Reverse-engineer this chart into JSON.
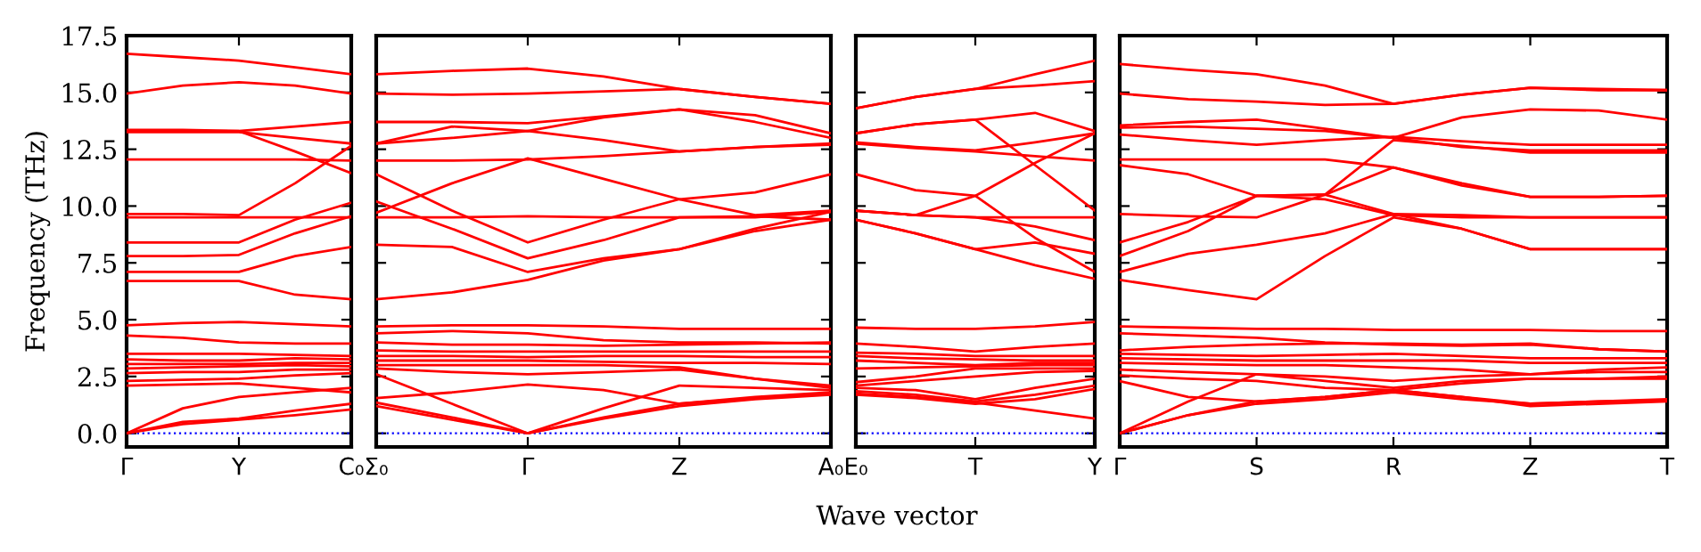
{
  "chart_data": [
    {
      "type": "line",
      "ylabel": "Frequency (THz)",
      "ylim": [
        -0.6,
        17.5
      ],
      "yticks": [
        {
          "value": 0,
          "label": "0.0"
        },
        {
          "value": 2.5,
          "label": "2.5"
        },
        {
          "value": 5,
          "label": "5.0"
        },
        {
          "value": 7.5,
          "label": "7.5"
        },
        {
          "value": 10,
          "label": "10.0"
        },
        {
          "value": 12.5,
          "label": "12.5"
        },
        {
          "value": 15,
          "label": "15.0"
        },
        {
          "value": 17.5,
          "label": "17.5"
        }
      ],
      "categories": [
        "Γ",
        null,
        "Y",
        null,
        "C₀"
      ],
      "marker": "none",
      "line_style": "solid",
      "ref_lines": [
        {
          "axis": "y",
          "value": 0,
          "label": null,
          "color": "#0000ff",
          "line_style": "dotted"
        }
      ],
      "series": [
        {
          "color": "#ff0000",
          "values": [
            16.7,
            16.55,
            16.4,
            16.1,
            15.8
          ]
        },
        {
          "color": "#ff0000",
          "values": [
            14.95,
            15.3,
            15.45,
            15.3,
            14.95
          ]
        },
        {
          "color": "#ff0000",
          "values": [
            13.35,
            13.35,
            13.3,
            13.5,
            13.7
          ]
        },
        {
          "color": "#ff0000",
          "values": [
            13.3,
            13.3,
            13.3,
            12.4,
            11.45
          ]
        },
        {
          "color": "#ff0000",
          "values": [
            13.25,
            13.25,
            13.25,
            13.0,
            12.75
          ]
        },
        {
          "color": "#ff0000",
          "values": [
            12.05,
            12.05,
            12.05,
            12.05,
            12.0
          ]
        },
        {
          "color": "#ff0000",
          "values": [
            9.65,
            9.65,
            9.6,
            11.0,
            12.65
          ]
        },
        {
          "color": "#ff0000",
          "values": [
            9.5,
            9.5,
            9.5,
            9.5,
            9.5
          ]
        },
        {
          "color": "#ff0000",
          "values": [
            8.4,
            8.4,
            8.4,
            9.4,
            10.15
          ]
        },
        {
          "color": "#ff0000",
          "values": [
            7.8,
            7.8,
            7.85,
            8.8,
            9.55
          ]
        },
        {
          "color": "#ff0000",
          "values": [
            7.1,
            7.1,
            7.1,
            7.8,
            8.2
          ]
        },
        {
          "color": "#ff0000",
          "values": [
            6.7,
            6.7,
            6.7,
            6.1,
            5.9
          ]
        },
        {
          "color": "#ff0000",
          "values": [
            4.75,
            4.85,
            4.9,
            4.8,
            4.7
          ]
        },
        {
          "color": "#ff0000",
          "values": [
            4.3,
            4.2,
            4.0,
            3.95,
            3.95
          ]
        },
        {
          "color": "#ff0000",
          "values": [
            3.5,
            3.5,
            3.5,
            3.45,
            3.4
          ]
        },
        {
          "color": "#ff0000",
          "values": [
            3.25,
            3.2,
            3.2,
            3.3,
            3.25
          ]
        },
        {
          "color": "#ff0000",
          "values": [
            3.05,
            3.05,
            3.05,
            3.1,
            3.1
          ]
        },
        {
          "color": "#ff0000",
          "values": [
            2.85,
            2.9,
            2.95,
            3.0,
            2.95
          ]
        },
        {
          "color": "#ff0000",
          "values": [
            2.65,
            2.7,
            2.7,
            2.8,
            2.8
          ]
        },
        {
          "color": "#ff0000",
          "values": [
            2.3,
            2.35,
            2.4,
            2.55,
            2.65
          ]
        },
        {
          "color": "#ff0000",
          "values": [
            2.1,
            2.15,
            2.2,
            2.0,
            1.8
          ]
        },
        {
          "color": "#ff0000",
          "values": [
            0,
            1.1,
            1.6,
            1.8,
            2.0
          ]
        },
        {
          "color": "#ff0000",
          "values": [
            0,
            0.4,
            0.6,
            0.8,
            1.05
          ]
        },
        {
          "color": "#ff0000",
          "values": [
            0,
            0.5,
            0.65,
            1.0,
            1.3
          ]
        }
      ]
    },
    {
      "type": "line",
      "ylim": [
        -0.6,
        17.5
      ],
      "yticks": [
        0,
        2.5,
        5,
        7.5,
        10,
        12.5,
        15,
        17.5
      ],
      "tick_labels": "x",
      "categories": [
        "Σ₀",
        null,
        "Γ",
        null,
        "Z",
        null,
        "A₀"
      ],
      "marker": "none",
      "line_style": "solid",
      "ref_lines": [
        {
          "axis": "y",
          "value": 0,
          "label": null,
          "color": "#0000ff",
          "line_style": "dotted"
        }
      ],
      "series": [
        {
          "color": "#ff0000",
          "values": [
            15.8,
            15.95,
            16.05,
            15.7,
            15.15,
            14.8,
            14.5
          ]
        },
        {
          "color": "#ff0000",
          "values": [
            14.95,
            14.9,
            14.95,
            15.05,
            15.15,
            14.8,
            14.5
          ]
        },
        {
          "color": "#ff0000",
          "values": [
            13.7,
            13.7,
            13.65,
            13.95,
            14.25,
            13.7,
            13.0
          ]
        },
        {
          "color": "#ff0000",
          "values": [
            12.75,
            13.5,
            13.3,
            13.9,
            14.25,
            14.0,
            13.2
          ]
        },
        {
          "color": "#ff0000",
          "values": [
            12.75,
            13.0,
            13.3,
            12.9,
            12.4,
            12.6,
            12.75
          ]
        },
        {
          "color": "#ff0000",
          "values": [
            12.0,
            12.0,
            12.05,
            12.2,
            12.4,
            12.6,
            12.7
          ]
        },
        {
          "color": "#ff0000",
          "values": [
            11.4,
            9.8,
            8.4,
            9.4,
            10.3,
            9.6,
            9.8
          ]
        },
        {
          "color": "#ff0000",
          "values": [
            9.7,
            11.0,
            12.1,
            11.2,
            10.3,
            10.6,
            11.4
          ]
        },
        {
          "color": "#ff0000",
          "values": [
            10.2,
            9.0,
            7.7,
            8.5,
            9.5,
            9.5,
            9.75
          ]
        },
        {
          "color": "#ff0000",
          "values": [
            9.5,
            9.5,
            9.55,
            9.5,
            9.5,
            9.55,
            9.4
          ]
        },
        {
          "color": "#ff0000",
          "values": [
            8.3,
            8.2,
            7.1,
            7.7,
            8.1,
            9.0,
            9.75
          ]
        },
        {
          "color": "#ff0000",
          "values": [
            5.9,
            6.2,
            6.75,
            7.6,
            8.1,
            8.9,
            9.4
          ]
        },
        {
          "color": "#ff0000",
          "values": [
            4.7,
            4.75,
            4.75,
            4.7,
            4.6,
            4.6,
            4.6
          ]
        },
        {
          "color": "#ff0000",
          "values": [
            4.4,
            4.5,
            4.4,
            4.1,
            4.0,
            4.0,
            3.95
          ]
        },
        {
          "color": "#ff0000",
          "values": [
            4.0,
            3.9,
            3.9,
            3.85,
            3.9,
            3.95,
            4.0
          ]
        },
        {
          "color": "#ff0000",
          "values": [
            3.65,
            3.6,
            3.6,
            3.6,
            3.6,
            3.6,
            3.6
          ]
        },
        {
          "color": "#ff0000",
          "values": [
            3.4,
            3.4,
            3.35,
            3.4,
            3.4,
            3.35,
            3.35
          ]
        },
        {
          "color": "#ff0000",
          "values": [
            3.2,
            3.2,
            3.2,
            3.15,
            3.1,
            3.1,
            3.05
          ]
        },
        {
          "color": "#ff0000",
          "values": [
            3.0,
            3.0,
            3.0,
            3.0,
            2.9,
            2.4,
            2.1
          ]
        },
        {
          "color": "#ff0000",
          "values": [
            2.85,
            2.7,
            2.6,
            2.7,
            2.8,
            2.4,
            2.0
          ]
        },
        {
          "color": "#ff0000",
          "values": [
            2.6,
            1.3,
            0,
            1.1,
            2.1,
            2.0,
            1.9
          ]
        },
        {
          "color": "#ff0000",
          "values": [
            1.55,
            1.8,
            2.15,
            1.9,
            1.3,
            1.6,
            1.8
          ]
        },
        {
          "color": "#ff0000",
          "values": [
            1.35,
            0.7,
            0,
            0.7,
            1.3,
            1.55,
            1.75
          ]
        },
        {
          "color": "#ff0000",
          "values": [
            1.2,
            0.6,
            0,
            0.65,
            1.2,
            1.5,
            1.7
          ]
        }
      ]
    },
    {
      "type": "line",
      "xlabel": "Wave vector",
      "ylim": [
        -0.6,
        17.5
      ],
      "yticks": [
        0,
        2.5,
        5,
        7.5,
        10,
        12.5,
        15,
        17.5
      ],
      "tick_labels": "x",
      "categories": [
        "E₀",
        null,
        "T",
        null,
        "Y"
      ],
      "marker": "none",
      "line_style": "solid",
      "ref_lines": [
        {
          "axis": "y",
          "value": 0,
          "label": null,
          "color": "#0000ff",
          "line_style": "dotted"
        }
      ],
      "series": [
        {
          "color": "#ff0000",
          "values": [
            14.3,
            14.8,
            15.15,
            15.8,
            16.4
          ]
        },
        {
          "color": "#ff0000",
          "values": [
            14.3,
            14.8,
            15.15,
            15.3,
            15.5
          ]
        },
        {
          "color": "#ff0000",
          "values": [
            13.2,
            13.6,
            13.8,
            14.1,
            13.3
          ]
        },
        {
          "color": "#ff0000",
          "values": [
            13.2,
            13.6,
            13.8,
            11.8,
            9.8
          ]
        },
        {
          "color": "#ff0000",
          "values": [
            12.8,
            12.6,
            12.45,
            12.8,
            13.2
          ]
        },
        {
          "color": "#ff0000",
          "values": [
            12.75,
            12.55,
            12.4,
            12.2,
            12.0
          ]
        },
        {
          "color": "#ff0000",
          "values": [
            11.4,
            10.7,
            10.45,
            11.9,
            13.2
          ]
        },
        {
          "color": "#ff0000",
          "values": [
            9.8,
            9.6,
            9.5,
            9.5,
            9.5
          ]
        },
        {
          "color": "#ff0000",
          "values": [
            9.8,
            9.6,
            10.45,
            8.6,
            7.1
          ]
        },
        {
          "color": "#ff0000",
          "values": [
            9.4,
            8.8,
            8.1,
            8.4,
            7.9
          ]
        },
        {
          "color": "#ff0000",
          "values": [
            9.4,
            8.8,
            8.1,
            7.4,
            6.8
          ]
        },
        {
          "color": "#ff0000",
          "values": [
            9.8,
            9.6,
            9.5,
            9.1,
            8.5
          ]
        },
        {
          "color": "#ff0000",
          "values": [
            4.65,
            4.6,
            4.6,
            4.7,
            4.9
          ]
        },
        {
          "color": "#ff0000",
          "values": [
            3.95,
            3.8,
            3.6,
            3.8,
            3.95
          ]
        },
        {
          "color": "#ff0000",
          "values": [
            3.55,
            3.5,
            3.4,
            3.4,
            3.4
          ]
        },
        {
          "color": "#ff0000",
          "values": [
            3.4,
            3.3,
            3.25,
            3.2,
            3.2
          ]
        },
        {
          "color": "#ff0000",
          "values": [
            3.2,
            3.1,
            3.0,
            3.1,
            3.1
          ]
        },
        {
          "color": "#ff0000",
          "values": [
            2.85,
            2.9,
            2.95,
            3.0,
            3.0
          ]
        },
        {
          "color": "#ff0000",
          "values": [
            2.25,
            2.5,
            2.85,
            2.85,
            2.85
          ]
        },
        {
          "color": "#ff0000",
          "values": [
            2.1,
            2.3,
            2.5,
            2.7,
            2.75
          ]
        },
        {
          "color": "#ff0000",
          "values": [
            2.0,
            1.9,
            1.5,
            2.0,
            2.4
          ]
        },
        {
          "color": "#ff0000",
          "values": [
            1.85,
            1.7,
            1.4,
            1.7,
            2.1
          ]
        },
        {
          "color": "#ff0000",
          "values": [
            1.75,
            1.6,
            1.35,
            1.0,
            0.65
          ]
        },
        {
          "color": "#ff0000",
          "values": [
            1.7,
            1.55,
            1.3,
            1.5,
            1.95
          ]
        }
      ]
    },
    {
      "type": "line",
      "ylim": [
        -0.6,
        17.5
      ],
      "yticks": [
        0,
        2.5,
        5,
        7.5,
        10,
        12.5,
        15,
        17.5
      ],
      "tick_labels": "x",
      "categories": [
        "Γ",
        null,
        "S",
        null,
        "R",
        null,
        "Z",
        null,
        "T"
      ],
      "marker": "none",
      "line_style": "solid",
      "ref_lines": [
        {
          "axis": "y",
          "value": 0,
          "label": null,
          "color": "#0000ff",
          "line_style": "dotted"
        }
      ],
      "series": [
        {
          "color": "#ff0000",
          "values": [
            16.25,
            16.0,
            15.8,
            15.3,
            14.5,
            14.9,
            15.2,
            15.1,
            15.1
          ]
        },
        {
          "color": "#ff0000",
          "values": [
            14.95,
            14.7,
            14.6,
            14.45,
            14.5,
            14.9,
            15.2,
            15.15,
            15.1
          ]
        },
        {
          "color": "#ff0000",
          "values": [
            13.55,
            13.7,
            13.8,
            13.4,
            13.0,
            12.6,
            12.45,
            12.45,
            12.45
          ]
        },
        {
          "color": "#ff0000",
          "values": [
            13.45,
            13.5,
            13.4,
            13.3,
            13.0,
            13.9,
            14.25,
            14.2,
            13.8
          ]
        },
        {
          "color": "#ff0000",
          "values": [
            13.15,
            12.9,
            12.7,
            12.9,
            13.05,
            12.85,
            12.7,
            12.7,
            12.7
          ]
        },
        {
          "color": "#ff0000",
          "values": [
            12.05,
            12.05,
            12.05,
            12.05,
            11.7,
            10.9,
            10.4,
            10.4,
            10.45
          ]
        },
        {
          "color": "#ff0000",
          "values": [
            11.8,
            11.4,
            10.45,
            10.5,
            9.65,
            9.0,
            8.1,
            8.1,
            8.1
          ]
        },
        {
          "color": "#ff0000",
          "values": [
            9.65,
            9.55,
            9.5,
            10.5,
            12.9,
            12.65,
            12.35,
            12.35,
            12.35
          ]
        },
        {
          "color": "#ff0000",
          "values": [
            8.4,
            9.3,
            10.45,
            10.5,
            11.7,
            11.0,
            10.4,
            10.4,
            10.45
          ]
        },
        {
          "color": "#ff0000",
          "values": [
            7.8,
            8.9,
            10.45,
            10.3,
            9.6,
            9.5,
            9.5,
            9.5,
            9.5
          ]
        },
        {
          "color": "#ff0000",
          "values": [
            7.1,
            7.9,
            8.3,
            8.8,
            9.65,
            9.6,
            9.5,
            9.5,
            9.5
          ]
        },
        {
          "color": "#ff0000",
          "values": [
            6.75,
            6.3,
            5.9,
            7.8,
            9.5,
            9.0,
            8.1,
            8.1,
            8.1
          ]
        },
        {
          "color": "#ff0000",
          "values": [
            4.7,
            4.65,
            4.6,
            4.6,
            4.55,
            4.55,
            4.55,
            4.5,
            4.5
          ]
        },
        {
          "color": "#ff0000",
          "values": [
            4.4,
            4.3,
            4.2,
            4.0,
            3.9,
            3.85,
            3.9,
            3.7,
            3.6
          ]
        },
        {
          "color": "#ff0000",
          "values": [
            3.65,
            3.8,
            3.9,
            3.95,
            3.95,
            3.9,
            3.95,
            3.7,
            3.6
          ]
        },
        {
          "color": "#ff0000",
          "values": [
            3.5,
            3.45,
            3.4,
            3.45,
            3.5,
            3.4,
            3.3,
            3.3,
            3.3
          ]
        },
        {
          "color": "#ff0000",
          "values": [
            3.3,
            3.25,
            3.2,
            3.2,
            3.2,
            3.2,
            3.1,
            3.1,
            3.1
          ]
        },
        {
          "color": "#ff0000",
          "values": [
            3.1,
            3.05,
            3.0,
            3.0,
            2.9,
            2.8,
            2.6,
            2.8,
            2.9
          ]
        },
        {
          "color": "#ff0000",
          "values": [
            2.8,
            2.7,
            2.6,
            2.3,
            2.0,
            2.3,
            2.4,
            2.4,
            2.4
          ]
        },
        {
          "color": "#ff0000",
          "values": [
            2.55,
            2.4,
            2.3,
            2.0,
            1.9,
            1.6,
            1.3,
            1.4,
            1.5
          ]
        },
        {
          "color": "#ff0000",
          "values": [
            2.3,
            1.6,
            1.4,
            1.6,
            1.9,
            1.6,
            1.2,
            1.3,
            1.4
          ]
        },
        {
          "color": "#ff0000",
          "values": [
            0,
            1.4,
            2.6,
            2.5,
            2.3,
            2.5,
            2.6,
            2.7,
            2.7
          ]
        },
        {
          "color": "#ff0000",
          "values": [
            0,
            0.8,
            1.4,
            1.6,
            1.9,
            2.2,
            2.4,
            2.4,
            2.5
          ]
        },
        {
          "color": "#ff0000",
          "values": [
            0,
            0.8,
            1.3,
            1.5,
            1.8,
            1.5,
            1.3,
            1.4,
            1.45
          ]
        }
      ]
    }
  ]
}
